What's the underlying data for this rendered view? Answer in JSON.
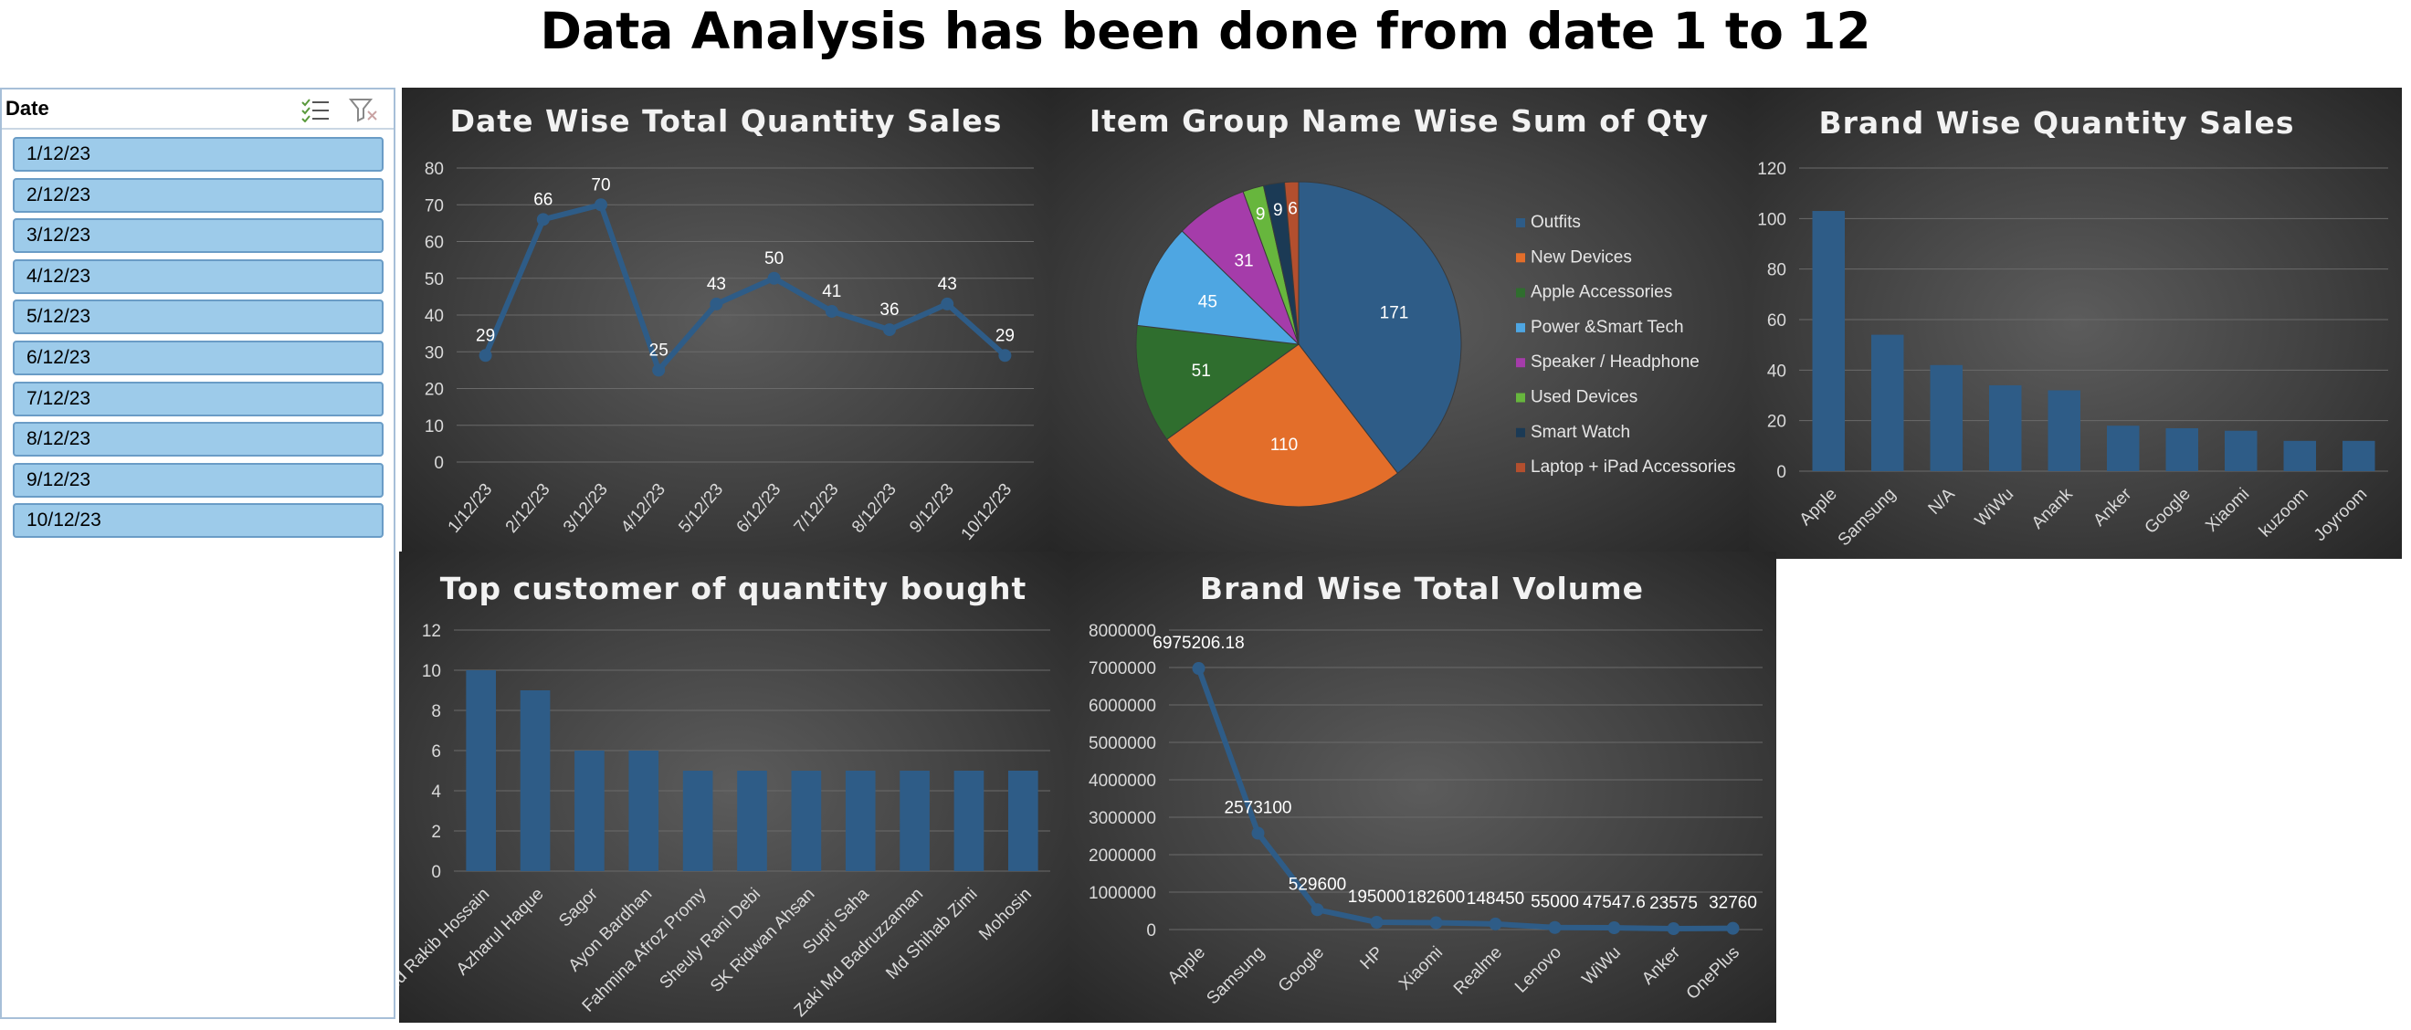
{
  "page_title": "Data Analysis has been done from date 1 to 12",
  "slicer": {
    "title": "Date",
    "multi_select_icon": "multi-select-icon",
    "clear_filter_icon": "clear-filter-icon",
    "items": [
      "1/12/23",
      "2/12/23",
      "3/12/23",
      "4/12/23",
      "5/12/23",
      "6/12/23",
      "7/12/23",
      "8/12/23",
      "9/12/23",
      "10/12/23"
    ]
  },
  "colors": {
    "series": "#2e5c87",
    "pie": [
      "#2e5c87",
      "#e36e2a",
      "#2f6e2e",
      "#4ea6e2",
      "#a53caa",
      "#67b63d",
      "#1b3a55",
      "#b34f2e"
    ]
  },
  "chart_data": [
    {
      "id": "date_qty",
      "type": "line",
      "title": "Date Wise Total Quantity Sales",
      "categories": [
        "1/12/23",
        "2/12/23",
        "3/12/23",
        "4/12/23",
        "5/12/23",
        "6/12/23",
        "7/12/23",
        "8/12/23",
        "9/12/23",
        "10/12/23"
      ],
      "values": [
        29,
        66,
        70,
        25,
        43,
        50,
        41,
        36,
        43,
        29
      ],
      "data_labels": [
        "29",
        "66",
        "70",
        "25",
        "43",
        "50",
        "41",
        "36",
        "43",
        "29"
      ],
      "yticks": [
        "0",
        "10",
        "20",
        "30",
        "40",
        "50",
        "60",
        "70",
        "80"
      ],
      "ylim": [
        0,
        80
      ],
      "grid": true
    },
    {
      "id": "item_group",
      "type": "pie",
      "title": "Item Group Name Wise Sum of Qty",
      "labels": [
        "Outfits",
        "New Devices",
        "Apple Accessories",
        "Power &Smart Tech",
        "Speaker / Headphone",
        "Used Devices",
        "Smart Watch",
        "Laptop + iPad Accessories"
      ],
      "values": [
        171,
        110,
        51,
        45,
        31,
        9,
        9,
        6
      ],
      "data_labels": [
        "171",
        "110",
        "51",
        "45",
        "31",
        "9",
        "9",
        "6"
      ],
      "legend_position": "right"
    },
    {
      "id": "brand_qty",
      "type": "bar",
      "title": "Brand Wise Quantity Sales",
      "categories": [
        "Apple",
        "Samsung",
        "N/A",
        "WiWu",
        "Anank",
        "Anker",
        "Google",
        "Xiaomi",
        "kuzoom",
        "Joyroom"
      ],
      "values": [
        103,
        54,
        42,
        34,
        32,
        18,
        17,
        16,
        12,
        12
      ],
      "yticks": [
        "0",
        "20",
        "40",
        "60",
        "80",
        "100",
        "120"
      ],
      "ylim": [
        0,
        120
      ],
      "grid": true
    },
    {
      "id": "top_customer",
      "type": "bar",
      "title": "Top customer of quantity bought",
      "categories": [
        "Md Rakib Hossain",
        "Azharul Haque",
        "Sagor",
        "Ayon Bardhan",
        "Fahmina Afroz Promy",
        "Sheuly Rani Debi",
        "SK Ridwan Ahsan",
        "Supti Saha",
        "Zaki Md Badruzzaman",
        "Md Shihab Zimi",
        "Mohosin"
      ],
      "values": [
        10,
        9,
        6,
        6,
        5,
        5,
        5,
        5,
        5,
        5,
        5
      ],
      "yticks": [
        "0",
        "2",
        "4",
        "6",
        "8",
        "10",
        "12"
      ],
      "ylim": [
        0,
        12
      ],
      "grid": true
    },
    {
      "id": "brand_volume",
      "type": "line",
      "title": "Brand Wise Total Volume",
      "categories": [
        "Apple",
        "Samsung",
        "Google",
        "HP",
        "Xiaomi",
        "Realme",
        "Lenovo",
        "WiWu",
        "Anker",
        "OnePlus"
      ],
      "values": [
        6975206.18,
        2573100,
        529600,
        195000,
        182600,
        148450,
        55000,
        47547.6,
        23575,
        32760
      ],
      "data_labels": [
        "6975206.18",
        "2573100",
        "529600",
        "195000",
        "182600",
        "148450",
        "55000",
        "47547.6",
        "23575",
        "32760"
      ],
      "yticks": [
        "0",
        "1000000",
        "2000000",
        "3000000",
        "4000000",
        "5000000",
        "6000000",
        "7000000",
        "8000000"
      ],
      "ylim": [
        0,
        8000000
      ],
      "grid": true
    }
  ]
}
